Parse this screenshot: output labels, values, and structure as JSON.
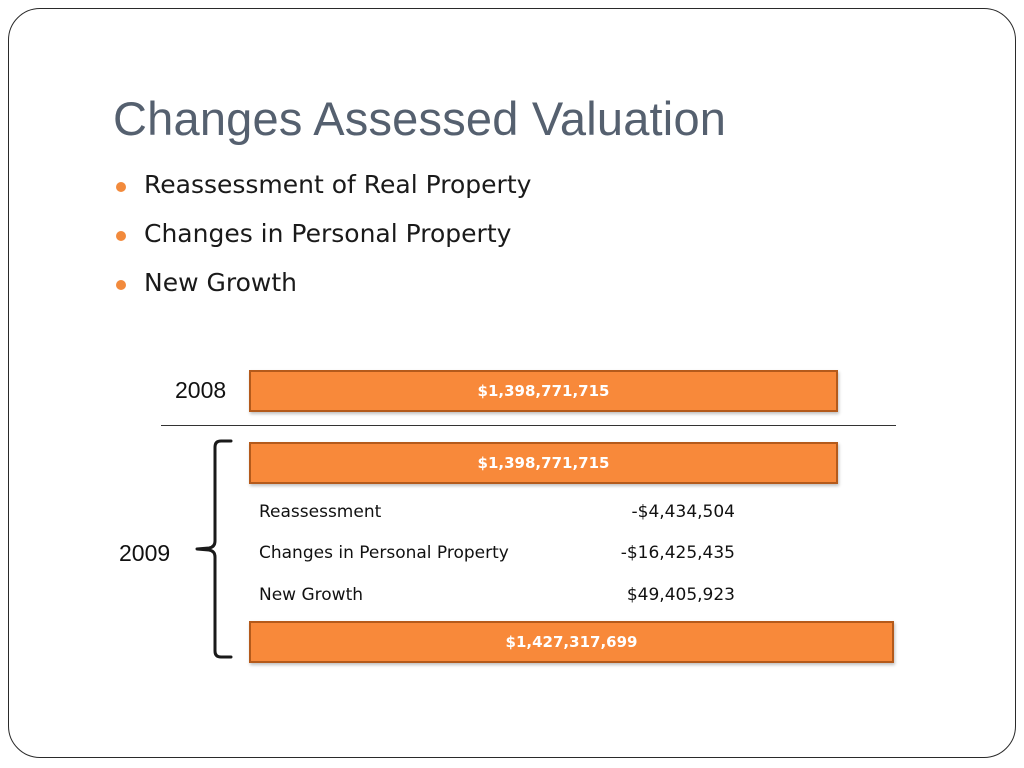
{
  "slide": {
    "title": "Changes Assessed Valuation",
    "bullets": [
      {
        "label": "Reassessment of Real Property"
      },
      {
        "label": "Changes in Personal Property"
      },
      {
        "label": "New Growth"
      }
    ],
    "accent_color": "#f8893a",
    "title_color": "#55606f"
  },
  "valuation": {
    "year_2008": {
      "label": "2008",
      "value": "$1,398,771,715"
    },
    "year_2009": {
      "label": "2009",
      "start_value": "$1,398,771,715",
      "changes": [
        {
          "label": "Reassessment",
          "value": "-$4,434,504"
        },
        {
          "label": "Changes in Personal Property",
          "value": "-$16,425,435"
        },
        {
          "label": "New Growth",
          "value": "$49,405,923"
        }
      ],
      "end_value": "$1,427,317,699"
    }
  }
}
